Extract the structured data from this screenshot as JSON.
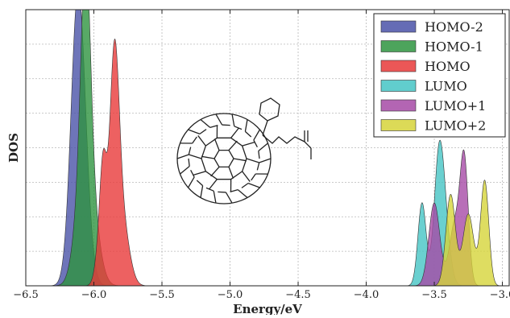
{
  "chart_data": {
    "type": "area",
    "title": "",
    "xlabel": "Energy/eV",
    "ylabel": "DOS",
    "xlim": [
      -6.5,
      -2.95
    ],
    "ylim": [
      0,
      1.0
    ],
    "grid": true,
    "legend_position": "top-right",
    "xticks": [
      -6.5,
      -6.0,
      -5.5,
      -5.0,
      -4.5,
      -4.0,
      -3.5,
      -3.0
    ],
    "xtick_labels": [
      "−6.5",
      "−6.0",
      "−5.5",
      "−5.0",
      "−4.5",
      "−4.0",
      "−3.5",
      "−3.0"
    ],
    "series": [
      {
        "name": "HOMO-2",
        "color": "#4a52a8",
        "peaks": [
          {
            "center": -6.12,
            "height": 0.96,
            "width": 0.05
          },
          {
            "center": -6.07,
            "height": 0.18,
            "width": 0.05
          }
        ]
      },
      {
        "name": "HOMO-1",
        "color": "#2e9440",
        "peaks": [
          {
            "center": -6.06,
            "height": 0.8,
            "width": 0.035
          },
          {
            "center": -6.03,
            "height": 0.33,
            "width": 0.06
          },
          {
            "center": -6.11,
            "height": 0.18,
            "width": 0.05
          }
        ]
      },
      {
        "name": "HOMO",
        "color": "#e83a3a",
        "peaks": [
          {
            "center": -5.85,
            "height": 0.78,
            "width": 0.035
          },
          {
            "center": -5.93,
            "height": 0.36,
            "width": 0.025
          },
          {
            "center": -5.79,
            "height": 0.22,
            "width": 0.05
          },
          {
            "center": -5.96,
            "height": 0.12,
            "width": 0.03
          }
        ]
      },
      {
        "name": "LUMO",
        "color": "#45c4c4",
        "peaks": [
          {
            "center": -3.59,
            "height": 0.3,
            "width": 0.03
          },
          {
            "center": -3.47,
            "height": 0.36,
            "width": 0.035
          },
          {
            "center": -3.43,
            "height": 0.24,
            "width": 0.04
          }
        ]
      },
      {
        "name": "LUMO+1",
        "color": "#a64aa6",
        "peaks": [
          {
            "center": -3.5,
            "height": 0.3,
            "width": 0.04
          },
          {
            "center": -3.28,
            "height": 0.44,
            "width": 0.03
          },
          {
            "center": -3.35,
            "height": 0.22,
            "width": 0.04
          }
        ]
      },
      {
        "name": "LUMO+2",
        "color": "#d6d43a",
        "peaks": [
          {
            "center": -3.38,
            "height": 0.33,
            "width": 0.035
          },
          {
            "center": -3.13,
            "height": 0.38,
            "width": 0.03
          },
          {
            "center": -3.25,
            "height": 0.26,
            "width": 0.04
          }
        ]
      }
    ]
  }
}
